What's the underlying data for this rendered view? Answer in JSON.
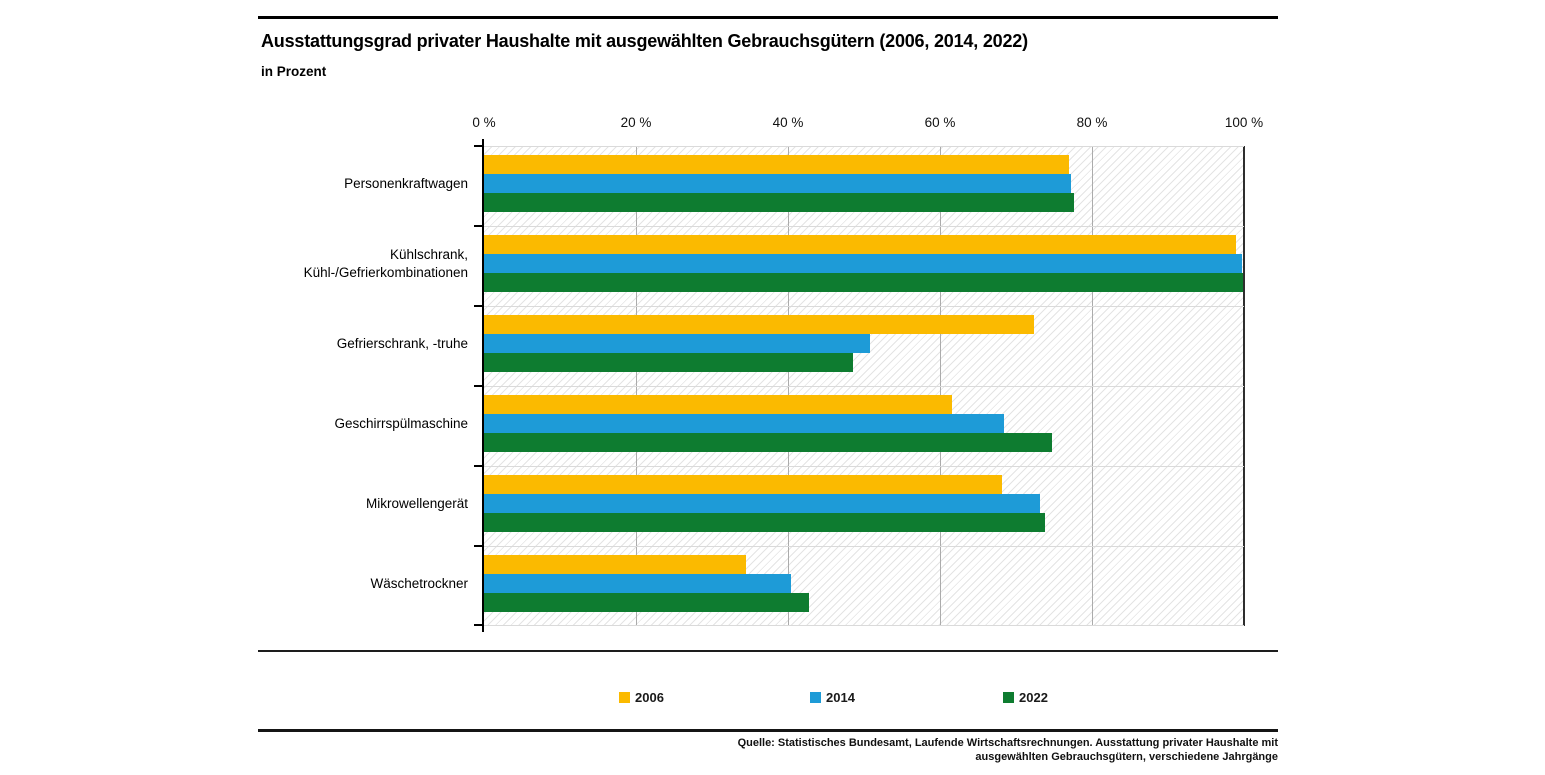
{
  "header": {
    "title": "Ausstattungsgrad privater Haushalte mit ausgewählten Gebrauchsgütern (2006, 2014, 2022)",
    "subtitle": "in Prozent"
  },
  "chart_data": {
    "type": "bar",
    "orientation": "horizontal",
    "title": "Ausstattungsgrad privater Haushalte mit ausgewählten Gebrauchsgütern (2006, 2014, 2022)",
    "subtitle": "in Prozent",
    "categories": [
      "Personenkraftwagen",
      "Kühlschrank,\nKühl-/Gefrierkombinationen",
      "Gefrierschrank, -truhe",
      "Geschirrspülmaschine",
      "Mikrowellengerät",
      "Wäschetrockner"
    ],
    "series": [
      {
        "name": "2006",
        "color": "#FBBA00",
        "values": [
          77.0,
          98.9,
          72.4,
          61.6,
          68.1,
          34.5
        ]
      },
      {
        "name": "2014",
        "color": "#1E9BD7",
        "values": [
          77.3,
          99.8,
          50.8,
          68.4,
          73.1,
          40.4
        ]
      },
      {
        "name": "2022",
        "color": "#0E7C30",
        "values": [
          77.6,
          99.9,
          48.6,
          74.8,
          73.8,
          42.8
        ]
      }
    ],
    "xlim": [
      0,
      100
    ],
    "x_ticks": [
      0,
      20,
      40,
      60,
      80,
      100
    ],
    "x_tick_labels": [
      "0 %",
      "20 %",
      "40 %",
      "60 %",
      "80 %",
      "100 %"
    ],
    "grid": "vertical",
    "legend_position": "bottom",
    "plot_background": "diagonal-hatch"
  },
  "legend": {
    "items": [
      {
        "label": "2006",
        "color": "#FBBA00"
      },
      {
        "label": "2014",
        "color": "#1E9BD7"
      },
      {
        "label": "2022",
        "color": "#0E7C30"
      }
    ]
  },
  "source": {
    "line1": "Quelle: Statistisches Bundesamt, Laufende Wirtschaftsrechnungen. Ausstattung privater Haushalte mit",
    "line2": "ausgewählten Gebrauchsgütern, verschiedene Jahrgänge"
  }
}
